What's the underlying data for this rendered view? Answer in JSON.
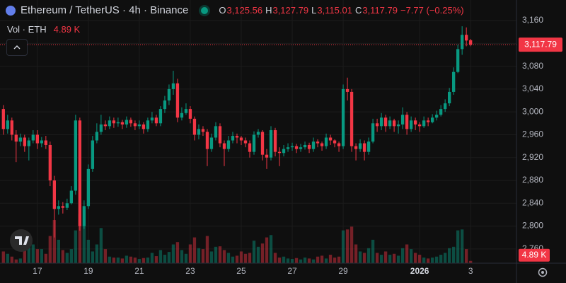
{
  "chart_data": {
    "type": "candlestick",
    "header": {
      "symbol": "Ethereum / TetherUS · 4h · Binance",
      "fields": [
        {
          "key": "O",
          "value": "3,125.56"
        },
        {
          "key": "H",
          "value": "3,127.79"
        },
        {
          "key": "L",
          "value": "3,115.01"
        },
        {
          "key": "C",
          "value": "3,117.79"
        }
      ],
      "change": "−7.77 (−0.25%)",
      "volume_title": "Vol · ETH"
    },
    "price_label": "3,117.79",
    "volume_label": "4.89 K",
    "up_color": "#089981",
    "down_color": "#f23645",
    "grid": true,
    "xlim": [
      -0.8,
      120.8
    ],
    "xticks": [
      {
        "value": 8,
        "label": "17"
      },
      {
        "value": 20,
        "label": "19"
      },
      {
        "value": 32,
        "label": "21"
      },
      {
        "value": 44,
        "label": "23"
      },
      {
        "value": 56,
        "label": "25"
      },
      {
        "value": 68,
        "label": "27"
      },
      {
        "value": 80,
        "label": "29"
      },
      {
        "value": 98,
        "label": "2026"
      },
      {
        "value": 110,
        "label": "3"
      }
    ],
    "ylim": [
      2735,
      3196
    ],
    "yticks": [
      {
        "value": 2760,
        "label": "2,760"
      },
      {
        "value": 2800,
        "label": "2,800"
      },
      {
        "value": 2840,
        "label": "2,840"
      },
      {
        "value": 2880,
        "label": "2,880"
      },
      {
        "value": 2920,
        "label": "2,920"
      },
      {
        "value": 2960,
        "label": "2,960"
      },
      {
        "value": 3000,
        "label": "3,000"
      },
      {
        "value": 3040,
        "label": "3,040"
      },
      {
        "value": 3080,
        "label": "3,080"
      },
      {
        "value": 3120,
        "label": "3,120"
      },
      {
        "value": 3160,
        "label": "3,160"
      }
    ],
    "volume_ylim": [
      0,
      160000
    ],
    "open": [
      3005,
      2970,
      2985,
      2960,
      2948,
      2955,
      2940,
      2950,
      2960,
      2945,
      2950,
      2942,
      2880,
      2830,
      2835,
      2832,
      2840,
      2862,
      2985,
      2800,
      2835,
      2900,
      2950,
      2965,
      2978,
      2975,
      2985,
      2980,
      2982,
      2978,
      2986,
      2980,
      2975,
      2978,
      2970,
      2985,
      2990,
      2980,
      3005,
      3020,
      3040,
      3050,
      2990,
      2998,
      3005,
      2988,
      2960,
      2970,
      2965,
      2935,
      2955,
      2975,
      2945,
      2935,
      2950,
      2958,
      2955,
      2950,
      2945,
      2930,
      2960,
      2965,
      2925,
      2920,
      2968,
      2930,
      2928,
      2935,
      2938,
      2940,
      2935,
      2938,
      2942,
      2935,
      2948,
      2945,
      2940,
      2955,
      2950,
      2945,
      2940,
      3040,
      3035,
      2940,
      2935,
      2945,
      2930,
      2948,
      2980,
      2975,
      2990,
      2975,
      2985,
      2975,
      2978,
      2995,
      2970,
      2985,
      2978,
      2975,
      2985,
      2982,
      2990,
      2995,
      3005,
      3015,
      3035,
      3070,
      3110,
      3135,
      3125.56
    ],
    "high": [
      3012,
      2995,
      2990,
      2968,
      2962,
      2960,
      2955,
      2968,
      2968,
      2956,
      2958,
      2948,
      2888,
      2845,
      2842,
      2848,
      2870,
      2995,
      2990,
      2845,
      2908,
      2958,
      2980,
      2995,
      2985,
      2992,
      2990,
      2990,
      2986,
      2992,
      2990,
      2985,
      2985,
      2982,
      2990,
      3000,
      2995,
      3010,
      3028,
      3048,
      3072,
      3058,
      3008,
      3015,
      3010,
      2992,
      2978,
      2975,
      2970,
      2962,
      2982,
      2980,
      2950,
      2958,
      2965,
      2962,
      2958,
      2955,
      2950,
      2966,
      2970,
      2968,
      2935,
      2975,
      2972,
      2938,
      2942,
      2945,
      2946,
      2944,
      2944,
      2948,
      2946,
      2955,
      2952,
      2948,
      2962,
      2960,
      2952,
      2948,
      3048,
      3060,
      3040,
      2945,
      2952,
      2950,
      2955,
      2988,
      2988,
      2998,
      2995,
      2992,
      2988,
      2985,
      3008,
      3000,
      2992,
      2990,
      2982,
      2992,
      2990,
      2996,
      3002,
      3012,
      3022,
      3042,
      3078,
      3118,
      3150,
      3148,
      3127.79
    ],
    "low": [
      2960,
      2962,
      2950,
      2912,
      2940,
      2930,
      2915,
      2945,
      2935,
      2938,
      2935,
      2870,
      2780,
      2820,
      2822,
      2828,
      2838,
      2855,
      2792,
      2795,
      2830,
      2895,
      2945,
      2960,
      2968,
      2970,
      2972,
      2974,
      2970,
      2972,
      2974,
      2968,
      2970,
      2962,
      2965,
      2980,
      2975,
      2975,
      2998,
      3012,
      3030,
      2982,
      2985,
      2995,
      2980,
      2950,
      2952,
      2958,
      2905,
      2930,
      2950,
      2938,
      2905,
      2930,
      2945,
      2945,
      2942,
      2938,
      2920,
      2925,
      2955,
      2915,
      2900,
      2915,
      2922,
      2905,
      2922,
      2930,
      2932,
      2928,
      2930,
      2934,
      2928,
      2930,
      2938,
      2932,
      2935,
      2942,
      2938,
      2930,
      2935,
      3020,
      2930,
      2915,
      2930,
      2915,
      2925,
      2945,
      2965,
      2968,
      2965,
      2970,
      2965,
      2962,
      2970,
      2960,
      2965,
      2968,
      2965,
      2972,
      2975,
      2980,
      2985,
      2992,
      3000,
      3010,
      3030,
      3068,
      3100,
      3115,
      3115.01
    ],
    "close": [
      2970,
      2985,
      2960,
      2948,
      2955,
      2940,
      2950,
      2960,
      2945,
      2950,
      2942,
      2880,
      2830,
      2835,
      2832,
      2840,
      2862,
      2985,
      2800,
      2835,
      2900,
      2950,
      2965,
      2978,
      2975,
      2985,
      2980,
      2982,
      2978,
      2986,
      2980,
      2975,
      2978,
      2970,
      2985,
      2990,
      2980,
      3005,
      3020,
      3040,
      3050,
      2990,
      2998,
      3005,
      2988,
      2960,
      2970,
      2965,
      2935,
      2955,
      2975,
      2945,
      2935,
      2950,
      2958,
      2955,
      2950,
      2945,
      2930,
      2960,
      2965,
      2925,
      2920,
      2968,
      2930,
      2928,
      2935,
      2938,
      2940,
      2935,
      2938,
      2942,
      2935,
      2948,
      2945,
      2940,
      2955,
      2950,
      2945,
      2940,
      3040,
      3035,
      2940,
      2935,
      2945,
      2930,
      2948,
      2980,
      2975,
      2990,
      2975,
      2985,
      2975,
      2978,
      2995,
      2970,
      2985,
      2978,
      2975,
      2985,
      2982,
      2990,
      2995,
      3005,
      3015,
      3035,
      3070,
      3110,
      3135,
      3125,
      3117.79
    ],
    "volume": [
      25000,
      20000,
      14000,
      8000,
      10000,
      38000,
      60000,
      40000,
      30000,
      30000,
      20000,
      58000,
      92000,
      50000,
      28000,
      22000,
      30000,
      70000,
      105000,
      80000,
      50000,
      25000,
      40000,
      75000,
      30000,
      14000,
      12000,
      12000,
      10000,
      16000,
      14000,
      12000,
      9000,
      11000,
      12000,
      22000,
      15000,
      28000,
      18000,
      24000,
      40000,
      45000,
      28000,
      20000,
      40000,
      55000,
      32000,
      30000,
      58000,
      25000,
      35000,
      36000,
      28000,
      22000,
      14000,
      16000,
      25000,
      20000,
      22000,
      48000,
      35000,
      42000,
      55000,
      60000,
      22000,
      12000,
      14000,
      10000,
      9000,
      11000,
      8000,
      12000,
      10000,
      8000,
      14000,
      16000,
      10000,
      18000,
      12000,
      14000,
      70000,
      72000,
      78000,
      40000,
      25000,
      22000,
      32000,
      50000,
      22000,
      18000,
      25000,
      18000,
      20000,
      16000,
      32000,
      40000,
      30000,
      22000,
      18000,
      12000,
      10000,
      12000,
      14000,
      18000,
      22000,
      32000,
      35000,
      70000,
      72000,
      30000,
      4890
    ]
  }
}
